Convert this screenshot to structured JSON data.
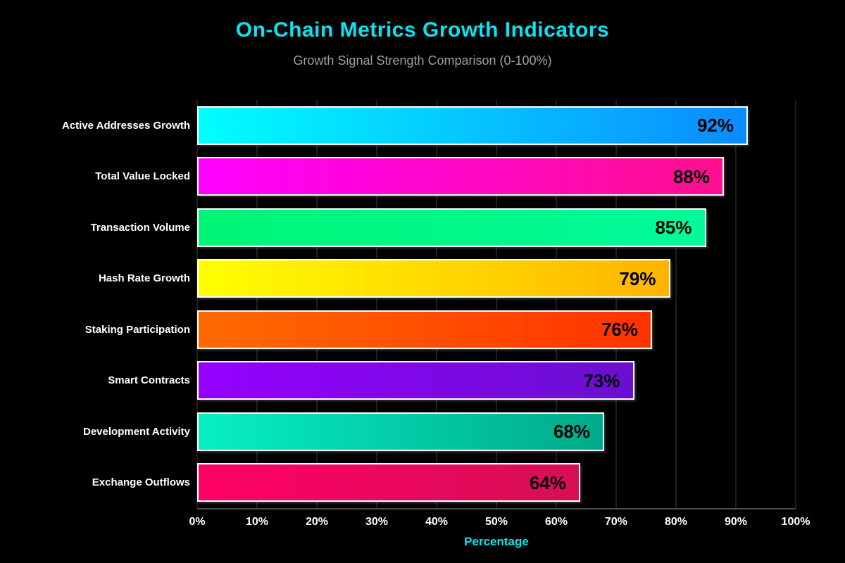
{
  "title": "On-Chain Metrics Growth Indicators",
  "subtitle": "Growth Signal Strength Comparison (0-100%)",
  "accent_colors": {
    "title": "#0ce2ee",
    "subtitle": "#a0a0a0",
    "background": "#000000",
    "gridline": "#1e1e1e",
    "axis_line": "#4a4a4a",
    "tick_label": "#ffffff",
    "category_label": "#ffffff",
    "value_label": "#000000",
    "bar_border": "#ffffff",
    "x_axis_title": "#0ce2ee"
  },
  "chart_data": {
    "type": "bar",
    "orientation": "horizontal",
    "title": "On-Chain Metrics Growth Indicators",
    "subtitle": "Growth Signal Strength Comparison (0-100%)",
    "xlabel": "Percentage",
    "ylabel": "",
    "xlim": [
      0,
      100
    ],
    "grid": true,
    "legend": false,
    "categories": [
      "Active Addresses Growth",
      "Total Value Locked",
      "Transaction Volume",
      "Hash Rate Growth",
      "Staking Participation",
      "Smart Contracts",
      "Development Activity",
      "Exchange Outflows"
    ],
    "values": [
      92,
      88,
      85,
      79,
      76,
      73,
      68,
      64
    ],
    "value_suffix": "%",
    "x_ticks": [
      "0%",
      "10%",
      "20%",
      "30%",
      "40%",
      "50%",
      "60%",
      "70%",
      "80%",
      "90%",
      "100%"
    ],
    "bar_gradients": [
      [
        "#00ffff",
        "#0a8bff"
      ],
      [
        "#ff00ff",
        "#ff0f8f"
      ],
      [
        "#00f576",
        "#00fa9a"
      ],
      [
        "#ffff00",
        "#ffb400"
      ],
      [
        "#ff6a00",
        "#ff3300"
      ],
      [
        "#9400ff",
        "#6a0fd0"
      ],
      [
        "#06f0c3",
        "#00a98c"
      ],
      [
        "#ff0066",
        "#d60f56"
      ]
    ]
  }
}
